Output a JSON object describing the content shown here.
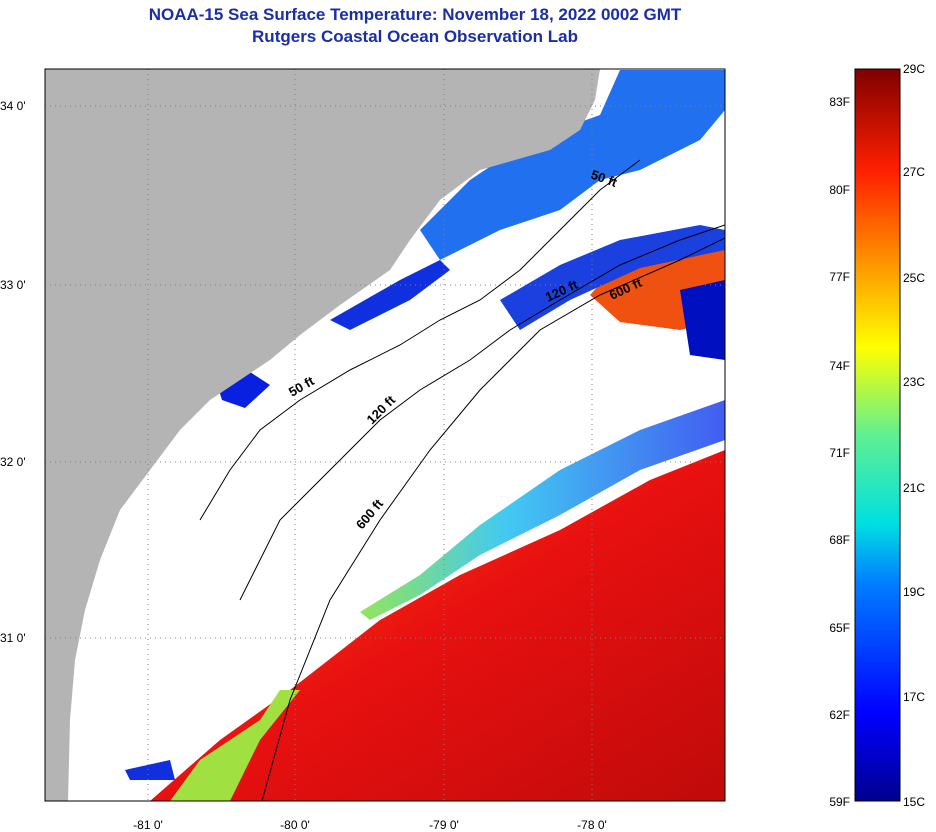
{
  "title": {
    "line1": "NOAA-15 Sea Surface Temperature:  November 18, 2022 0002 GMT",
    "line2": "Rutgers Coastal Ocean Observation Lab"
  },
  "axes": {
    "lat_labels": [
      "34 0'",
      "33 0'",
      "32 0'",
      "31 0'"
    ],
    "lon_labels": [
      "-81 0'",
      "-80 0'",
      "-79 0'",
      "-78 0'"
    ]
  },
  "contours": [
    "50 ft",
    "120 ft",
    "600 ft"
  ],
  "colorbar": {
    "fahrenheit": [
      "83F",
      "80F",
      "77F",
      "74F",
      "71F",
      "68F",
      "65F",
      "62F",
      "59F"
    ],
    "celsius": [
      "29C",
      "27C",
      "25C",
      "23C",
      "21C",
      "19C",
      "17C",
      "15C"
    ]
  },
  "colors": {
    "title": "#1a2ea8",
    "land": "#b4b4b4",
    "cloud": "#ffffff"
  }
}
